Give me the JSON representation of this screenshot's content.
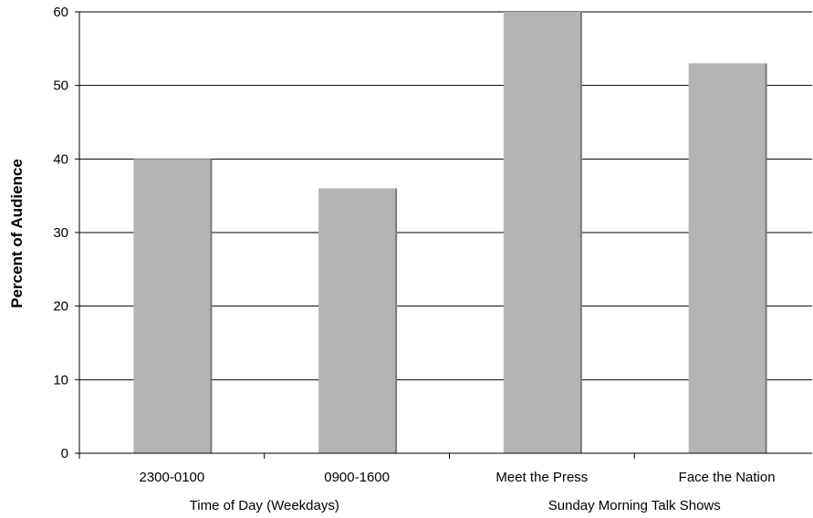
{
  "chart_data": {
    "type": "bar",
    "categories": [
      "2300-0100",
      "0900-1600",
      "Meet the Press",
      "Face the Nation"
    ],
    "values": [
      40,
      36,
      60,
      53
    ],
    "groups": [
      {
        "label": "Time of Day (Weekdays)",
        "categories": [
          "2300-0100",
          "0900-1600"
        ]
      },
      {
        "label": "Sunday Morning Talk Shows",
        "categories": [
          "Meet the Press",
          "Face the Nation"
        ]
      }
    ],
    "title": "",
    "xlabel": "",
    "ylabel": "Percent of Audience",
    "ylim": [
      0,
      60
    ],
    "yticks": [
      0,
      10,
      20,
      30,
      40,
      50,
      60
    ],
    "grid": true,
    "legend": "none",
    "bar_color": "#b4b4b4",
    "bar_shadow_color": "#7a7a7a"
  }
}
